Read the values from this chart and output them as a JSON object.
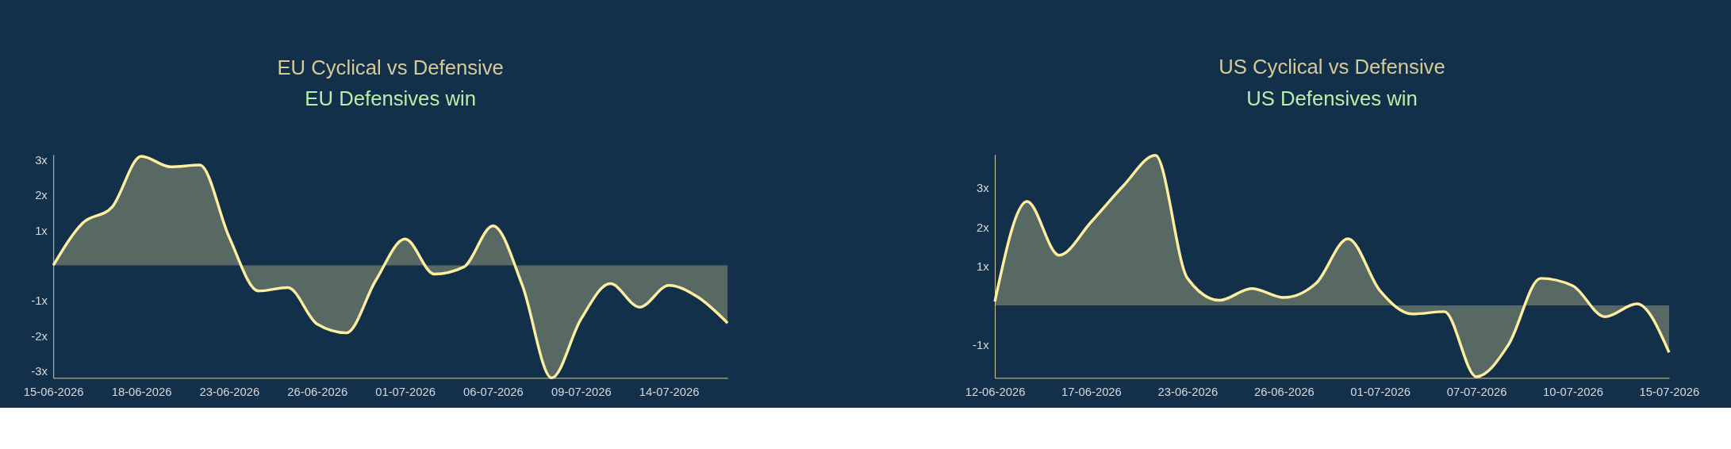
{
  "chart_data": [
    {
      "type": "area",
      "title": "EU Cyclical vs Defensive",
      "subtitle": "EU Defensives win",
      "categories": [
        "15-06-2026",
        null,
        null,
        "18-06-2026",
        null,
        null,
        "23-06-2026",
        null,
        null,
        "26-06-2026",
        null,
        null,
        "01-07-2026",
        null,
        null,
        "06-07-2026",
        null,
        null,
        "09-07-2026",
        null,
        null,
        "14-07-2026",
        null,
        null
      ],
      "series": [
        {
          "color": "#fdeea0",
          "values": [
            0,
            1.2,
            1.65,
            3.1,
            2.8,
            2.85,
            0.8,
            -0.73,
            -0.63,
            -1.67,
            -1.92,
            -0.43,
            0.75,
            -0.25,
            -0.05,
            1.12,
            -0.57,
            -3.2,
            -1.53,
            -0.52,
            -1.19,
            -0.57,
            -0.91,
            -1.64
          ]
        }
      ],
      "ylim": [
        -3.2,
        3.15
      ],
      "yticks": [
        {
          "value": 3,
          "label": "3x"
        },
        {
          "value": 2,
          "label": "2x"
        },
        {
          "value": 1,
          "label": "1x"
        },
        {
          "value": -1,
          "label": "-1x"
        },
        {
          "value": -2,
          "label": "-2x"
        },
        {
          "value": -3,
          "label": "-3x"
        }
      ],
      "grid": false,
      "legend": false
    },
    {
      "type": "area",
      "title": "US Cyclical vs Defensive",
      "subtitle": "US Defensives win",
      "categories": [
        "12-06-2026",
        null,
        null,
        "17-06-2026",
        null,
        null,
        "23-06-2026",
        null,
        null,
        "26-06-2026",
        null,
        null,
        "01-07-2026",
        null,
        null,
        "07-07-2026",
        null,
        null,
        "10-07-2026",
        null,
        null,
        "15-07-2026"
      ],
      "series": [
        {
          "color": "#fdeea0",
          "values": [
            0.1,
            2.65,
            1.28,
            2.13,
            3.05,
            3.83,
            0.69,
            0.13,
            0.43,
            0.2,
            0.56,
            1.7,
            0.37,
            -0.22,
            -0.16,
            -1.82,
            -1.0,
            0.69,
            0.5,
            -0.29,
            0.04,
            -1.2
          ]
        }
      ],
      "ylim": [
        -1.85,
        3.85
      ],
      "yticks": [
        {
          "value": 3,
          "label": "3x"
        },
        {
          "value": 2,
          "label": "2x"
        },
        {
          "value": 1,
          "label": "1x"
        },
        {
          "value": -1,
          "label": "-1x"
        }
      ],
      "grid": false,
      "legend": false
    }
  ]
}
